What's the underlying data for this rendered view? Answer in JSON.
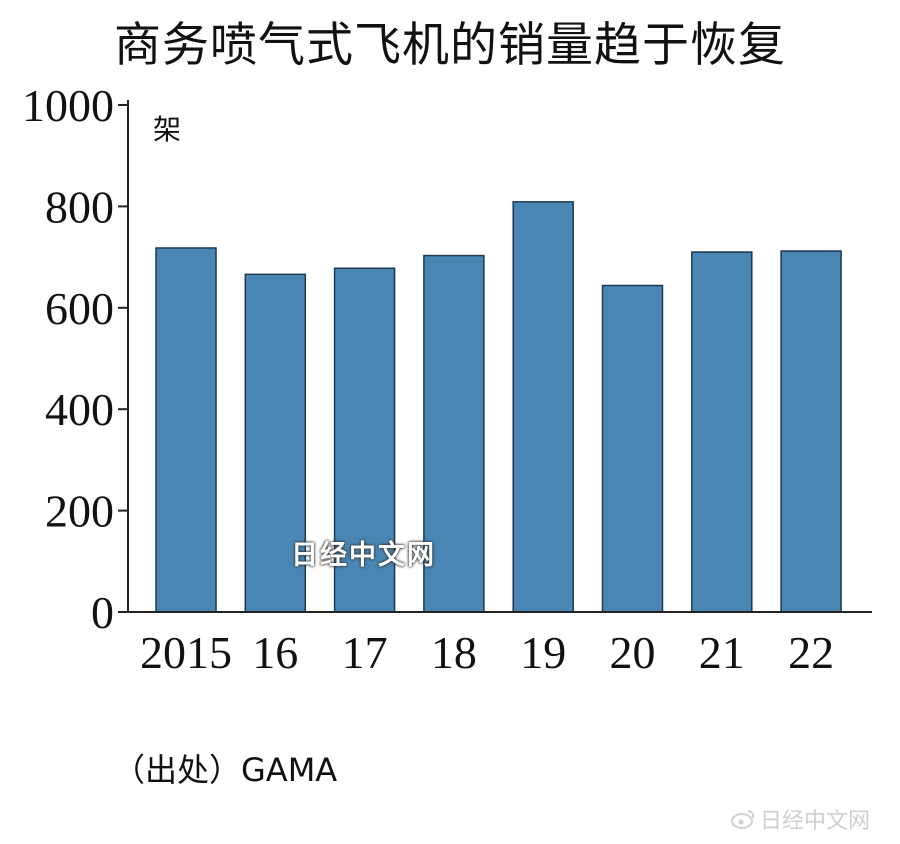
{
  "chart_data": {
    "type": "bar",
    "title": "商务喷气式飞机的销量趋于恢复",
    "ylabel": "架",
    "xlabel": "",
    "categories": [
      "2015",
      "16",
      "17",
      "18",
      "19",
      "20",
      "21",
      "22"
    ],
    "values": [
      718,
      666,
      678,
      703,
      809,
      644,
      710,
      712
    ],
    "yticks": [
      0,
      200,
      400,
      600,
      800,
      1000
    ],
    "ylim": [
      0,
      1000
    ],
    "grid": false,
    "bar_color": "#4a86b3",
    "source": "（出处）GAMA",
    "watermark": "日经中文网"
  },
  "corner_watermark": {
    "icon": "weibo-logo-icon",
    "text": "日经中文网"
  }
}
